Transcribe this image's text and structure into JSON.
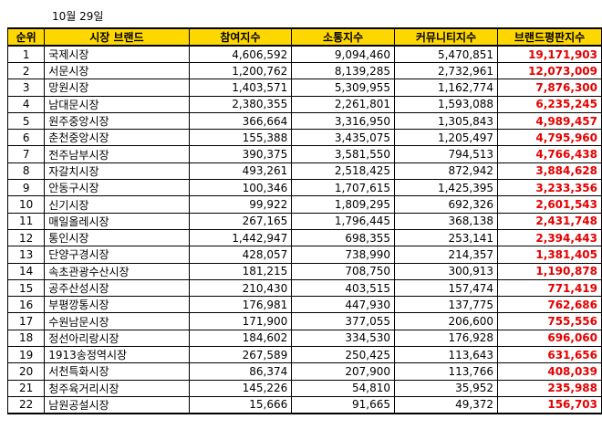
{
  "date_label": "10월 29일",
  "table": {
    "headers": {
      "rank": "순위",
      "brand": "시장 브랜드",
      "participation": "참여지수",
      "communication": "소통지수",
      "community": "커뮤니티지수",
      "reputation": "브랜드평판지수"
    },
    "rows": [
      {
        "rank": "1",
        "brand": "국제시장",
        "participation": "4,606,592",
        "communication": "9,094,460",
        "community": "5,470,851",
        "reputation": "19,171,903"
      },
      {
        "rank": "2",
        "brand": "서문시장",
        "participation": "1,200,762",
        "communication": "8,139,285",
        "community": "2,732,961",
        "reputation": "12,073,009"
      },
      {
        "rank": "3",
        "brand": "망원시장",
        "participation": "1,403,571",
        "communication": "5,309,955",
        "community": "1,162,774",
        "reputation": "7,876,300"
      },
      {
        "rank": "4",
        "brand": "남대문시장",
        "participation": "2,380,355",
        "communication": "2,261,801",
        "community": "1,593,088",
        "reputation": "6,235,245"
      },
      {
        "rank": "5",
        "brand": "원주중앙시장",
        "participation": "366,664",
        "communication": "3,316,950",
        "community": "1,305,843",
        "reputation": "4,989,457"
      },
      {
        "rank": "6",
        "brand": "춘천중앙시장",
        "participation": "155,388",
        "communication": "3,435,075",
        "community": "1,205,497",
        "reputation": "4,795,960"
      },
      {
        "rank": "7",
        "brand": "전주남부시장",
        "participation": "390,375",
        "communication": "3,581,550",
        "community": "794,513",
        "reputation": "4,766,438"
      },
      {
        "rank": "8",
        "brand": "자갈치시장",
        "participation": "493,261",
        "communication": "2,518,425",
        "community": "872,942",
        "reputation": "3,884,628"
      },
      {
        "rank": "9",
        "brand": "안동구시장",
        "participation": "100,346",
        "communication": "1,707,615",
        "community": "1,425,395",
        "reputation": "3,233,356"
      },
      {
        "rank": "10",
        "brand": "신기시장",
        "participation": "99,922",
        "communication": "1,809,295",
        "community": "692,326",
        "reputation": "2,601,543"
      },
      {
        "rank": "11",
        "brand": "매일올레시장",
        "participation": "267,165",
        "communication": "1,796,445",
        "community": "368,138",
        "reputation": "2,431,748"
      },
      {
        "rank": "12",
        "brand": "통인시장",
        "participation": "1,442,947",
        "communication": "698,355",
        "community": "253,141",
        "reputation": "2,394,443"
      },
      {
        "rank": "13",
        "brand": "단양구경시장",
        "participation": "428,057",
        "communication": "738,990",
        "community": "214,357",
        "reputation": "1,381,405"
      },
      {
        "rank": "14",
        "brand": "속초관광수산시장",
        "participation": "181,215",
        "communication": "708,750",
        "community": "300,913",
        "reputation": "1,190,878"
      },
      {
        "rank": "15",
        "brand": "공주산성시장",
        "participation": "210,430",
        "communication": "403,515",
        "community": "157,474",
        "reputation": "771,419"
      },
      {
        "rank": "16",
        "brand": "부평깡통시장",
        "participation": "176,981",
        "communication": "447,930",
        "community": "137,775",
        "reputation": "762,686"
      },
      {
        "rank": "17",
        "brand": "수원남문시장",
        "participation": "171,900",
        "communication": "377,055",
        "community": "206,600",
        "reputation": "755,556"
      },
      {
        "rank": "18",
        "brand": "정선아리랑시장",
        "participation": "184,602",
        "communication": "334,530",
        "community": "176,928",
        "reputation": "696,060"
      },
      {
        "rank": "19",
        "brand": "1913송정역시장",
        "participation": "267,589",
        "communication": "250,425",
        "community": "113,643",
        "reputation": "631,656"
      },
      {
        "rank": "20",
        "brand": "서천특화시장",
        "participation": "86,374",
        "communication": "207,900",
        "community": "113,766",
        "reputation": "408,039"
      },
      {
        "rank": "21",
        "brand": "청주육거리시장",
        "participation": "145,226",
        "communication": "54,810",
        "community": "35,952",
        "reputation": "235,988"
      },
      {
        "rank": "22",
        "brand": "남원공설시장",
        "participation": "15,666",
        "communication": "91,665",
        "community": "49,372",
        "reputation": "156,703"
      }
    ]
  },
  "colors": {
    "header_bg": "#ffd700",
    "reputation_text": "#e60000",
    "border": "#000000"
  }
}
